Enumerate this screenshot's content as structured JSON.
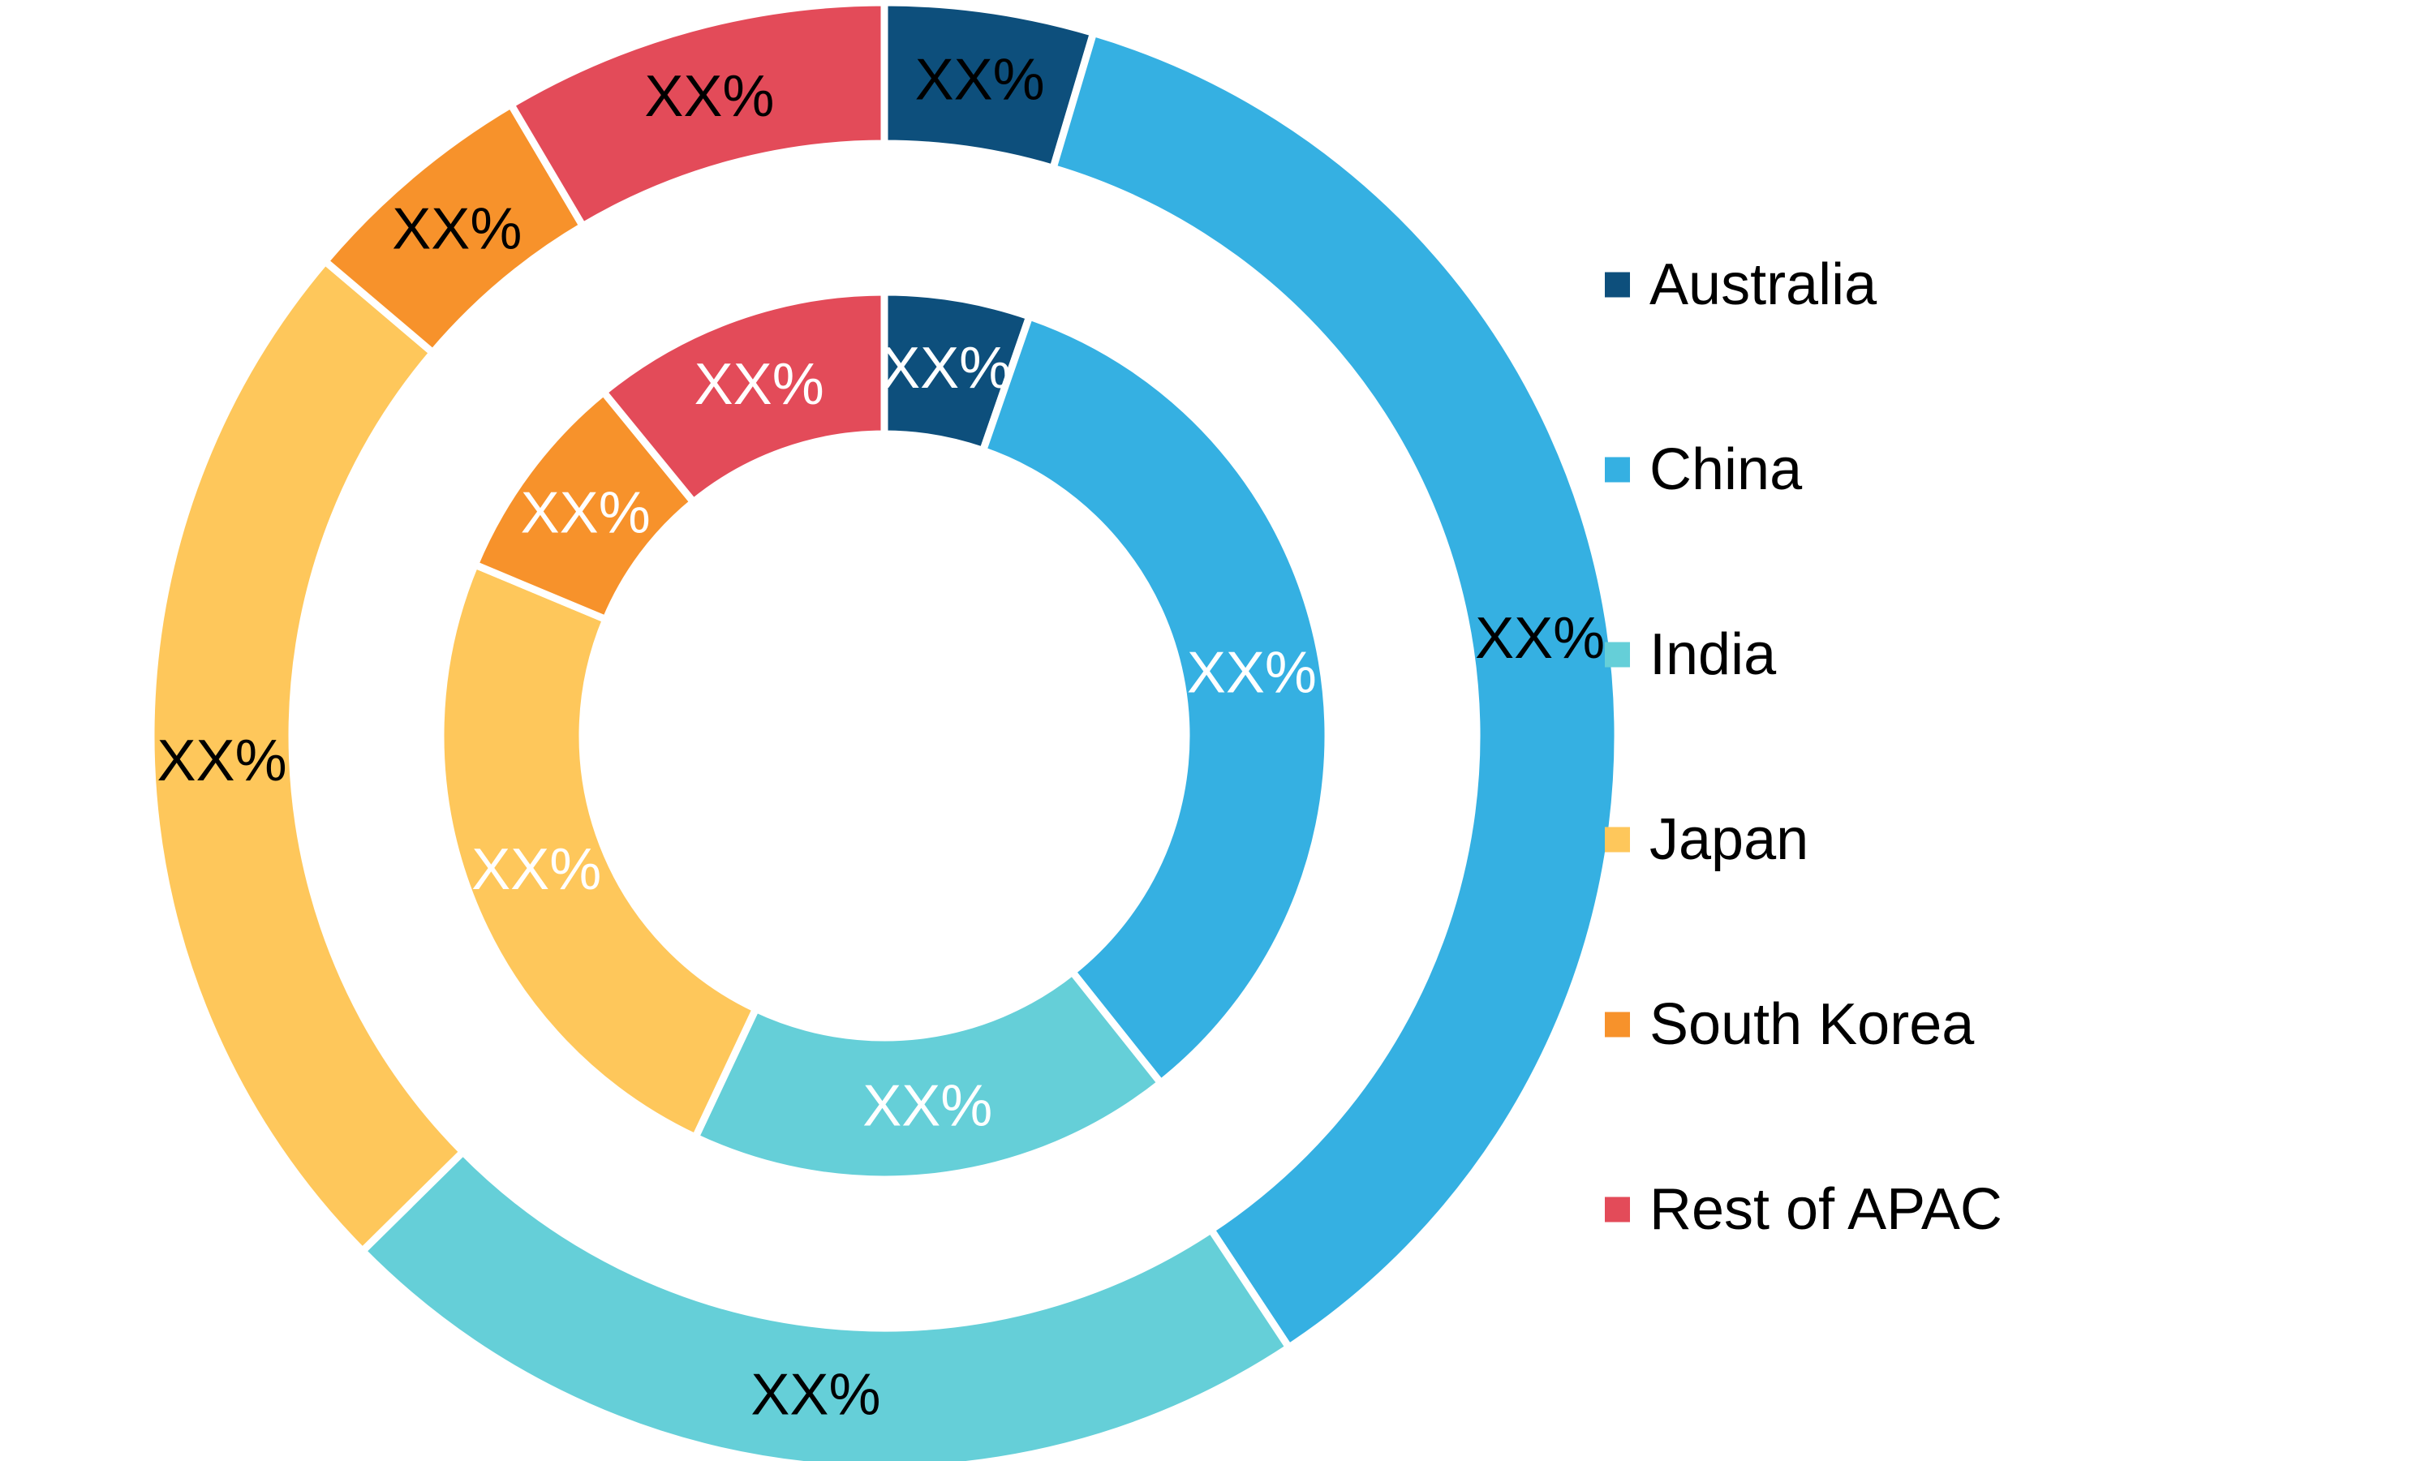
{
  "chart_data": {
    "type": "pie",
    "style": "nested-donut",
    "categories": [
      "Australia",
      "China",
      "India",
      "Japan",
      "South Korea",
      "Rest of APAC"
    ],
    "colors": {
      "Australia": "#0d4f7c",
      "China": "#35b0e2",
      "India": "#65cfd8",
      "Japan": "#fec75b",
      "South Korea": "#f7922b",
      "Rest of APAC": "#e34b59"
    },
    "series": [
      {
        "ring": "outer",
        "values": [
          4.6,
          36.1,
          21.9,
          23.6,
          5.3,
          8.5
        ],
        "labels": [
          "XX%",
          "XX%",
          "XX%",
          "XX%",
          "XX%",
          "XX%"
        ],
        "label_color": "#000000"
      },
      {
        "ring": "inner",
        "values": [
          5.3,
          34.0,
          17.7,
          24.3,
          7.8,
          10.9
        ],
        "labels": [
          "XX%",
          "XX%",
          "XX%",
          "XX%",
          "XX%",
          "XX%"
        ],
        "label_color": "#ffffff"
      }
    ],
    "legend": {
      "position": "right",
      "entries": [
        "Australia",
        "China",
        "India",
        "Japan",
        "South Korea",
        "Rest of APAC"
      ]
    }
  }
}
